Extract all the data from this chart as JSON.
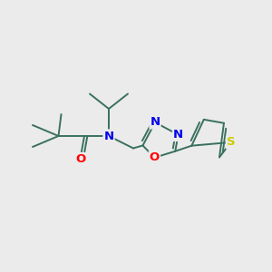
{
  "background_color": "#ebebeb",
  "bond_color": "#3a7060",
  "atom_colors": {
    "O": "#ff0000",
    "N": "#0000ee",
    "S": "#cccc00",
    "C": "#3a7060"
  },
  "figsize": [
    3.0,
    3.0
  ],
  "dpi": 100,
  "font_size": 9.5
}
